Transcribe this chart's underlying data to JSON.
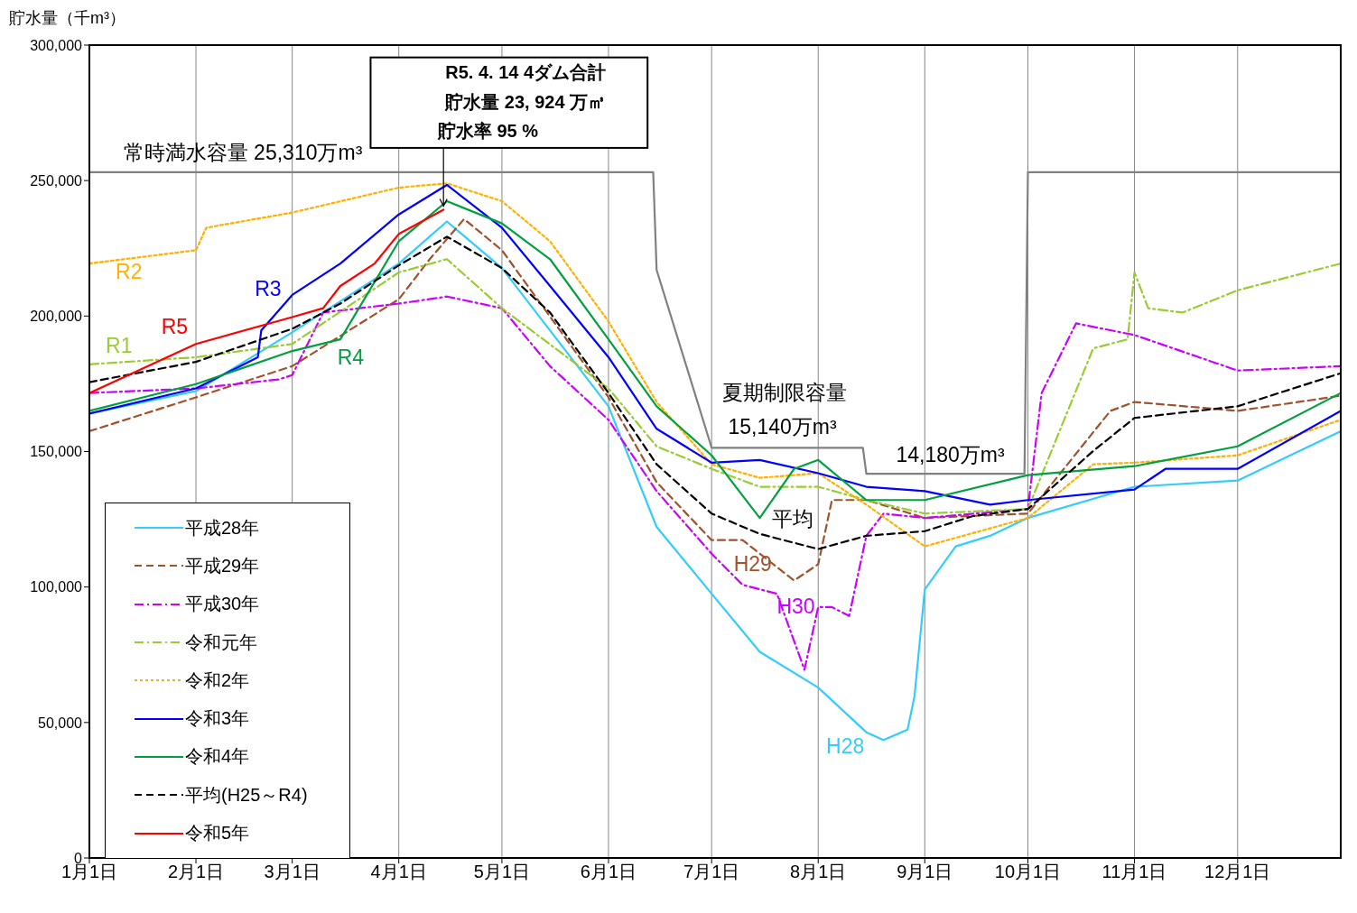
{
  "chart_data": {
    "type": "line",
    "ylabel": "貯水量（千m³）",
    "xlim": [
      "--01-01",
      "--12-31"
    ],
    "xticks": [
      {
        "value": "--01-01",
        "label": "1月1日"
      },
      {
        "value": "--02-01",
        "label": "2月1日"
      },
      {
        "value": "--03-01",
        "label": "3月1日"
      },
      {
        "value": "--04-01",
        "label": "4月1日"
      },
      {
        "value": "--05-01",
        "label": "5月1日"
      },
      {
        "value": "--06-01",
        "label": "6月1日"
      },
      {
        "value": "--07-01",
        "label": "7月1日"
      },
      {
        "value": "--08-01",
        "label": "8月1日"
      },
      {
        "value": "--09-01",
        "label": "9月1日"
      },
      {
        "value": "--10-01",
        "label": "10月1日"
      },
      {
        "value": "--11-01",
        "label": "11月1日"
      },
      {
        "value": "--12-01",
        "label": "12月1日"
      }
    ],
    "ylim": [
      0,
      300000
    ],
    "yticks": [
      {
        "value": 0,
        "label": "0"
      },
      {
        "value": 50000,
        "label": "50,000"
      },
      {
        "value": 100000,
        "label": "100,000"
      },
      {
        "value": 150000,
        "label": "150,000"
      },
      {
        "value": 200000,
        "label": "200,000"
      },
      {
        "value": 250000,
        "label": "250,000"
      },
      {
        "value": 300000,
        "label": "300,000"
      }
    ],
    "grid": true,
    "legend": "bottom left",
    "series": [
      {
        "color": "#808080",
        "line_style": "solid",
        "x": [
          "--01-01",
          "--06-14",
          "--06-15",
          "--07-01",
          "--08-14",
          "--08-15",
          "--09-30",
          "--10-01",
          "--12-31"
        ],
        "values": [
          253100,
          253100,
          217000,
          151400,
          151400,
          141800,
          141800,
          253100,
          253100
        ]
      },
      {
        "name": "平成28年",
        "color": "#33ccff",
        "line_style": "solid",
        "x": [
          "--01-01",
          "--02-01",
          "--03-01",
          "--04-01",
          "--04-15",
          "--05-01",
          "--06-01",
          "--06-15",
          "--07-01",
          "--07-15",
          "--08-01",
          "--08-15",
          "--08-20",
          "--08-27",
          "--08-29",
          "--09-01",
          "--09-10",
          "--09-20",
          "--10-01",
          "--11-01",
          "--12-01",
          "--12-31"
        ],
        "values": [
          164000,
          172300,
          194000,
          219400,
          234900,
          217700,
          166700,
          122200,
          97500,
          76100,
          62900,
          46400,
          43500,
          47400,
          59600,
          99100,
          115000,
          118900,
          125500,
          137000,
          139300,
          157500
        ]
      },
      {
        "name": "平成29年",
        "color": "#a0522d",
        "line_style": "dashed",
        "x": [
          "--01-01",
          "--02-01",
          "--03-01",
          "--04-01",
          "--04-10",
          "--04-20",
          "--05-01",
          "--06-01",
          "--06-15",
          "--07-01",
          "--07-10",
          "--07-25",
          "--08-01",
          "--08-05",
          "--08-15",
          "--09-01",
          "--10-01",
          "--10-25",
          "--11-01",
          "--12-01",
          "--12-31"
        ],
        "values": [
          157500,
          170000,
          181500,
          206200,
          221000,
          235800,
          224300,
          170000,
          138700,
          117300,
          117300,
          102400,
          108400,
          132100,
          132100,
          125500,
          127100,
          165000,
          168300,
          165000,
          170600
        ]
      },
      {
        "name": "平成30年",
        "color": "#cc00ff",
        "line_style": "dashdot",
        "x": [
          "--01-01",
          "--02-01",
          "--02-25",
          "--03-01",
          "--03-10",
          "--04-01",
          "--04-15",
          "--05-01",
          "--05-15",
          "--06-01",
          "--06-15",
          "--07-01",
          "--07-10",
          "--07-20",
          "--07-28",
          "--08-01",
          "--08-05",
          "--08-10",
          "--08-15",
          "--08-20",
          "--09-01",
          "--10-01",
          "--10-05",
          "--10-15",
          "--11-01",
          "--12-01",
          "--12-31"
        ],
        "values": [
          171600,
          173300,
          176600,
          178200,
          201300,
          204600,
          207200,
          202900,
          181500,
          161700,
          135400,
          112300,
          100800,
          97500,
          69500,
          92600,
          92600,
          89300,
          118900,
          127100,
          125500,
          128800,
          171600,
          197300,
          193000,
          179900,
          181500
        ]
      },
      {
        "name": "令和元年",
        "color": "#99cc33",
        "line_style": "dashdot",
        "x": [
          "--01-01",
          "--02-01",
          "--03-01",
          "--04-01",
          "--04-15",
          "--05-01",
          "--06-01",
          "--06-15",
          "--07-01",
          "--07-15",
          "--08-01",
          "--08-15",
          "--09-01",
          "--10-01",
          "--10-20",
          "--10-30",
          "--11-01",
          "--11-05",
          "--11-15",
          "--12-01",
          "--12-31"
        ],
        "values": [
          182200,
          184800,
          189700,
          216100,
          221000,
          202900,
          173300,
          151900,
          143600,
          137000,
          137000,
          132100,
          127100,
          128800,
          188100,
          191400,
          216100,
          202900,
          201300,
          209500,
          219400
        ]
      },
      {
        "name": "令和2年",
        "color": "#ffb000",
        "line_style": "dotted",
        "x": [
          "--01-01",
          "--02-01",
          "--02-04",
          "--03-01",
          "--04-01",
          "--04-15",
          "--05-01",
          "--05-15",
          "--06-01",
          "--06-15",
          "--07-01",
          "--07-15",
          "--08-01",
          "--08-15",
          "--09-01",
          "--10-01",
          "--10-20",
          "--11-01",
          "--12-01",
          "--12-31"
        ],
        "values": [
          219400,
          224300,
          232600,
          238200,
          247400,
          249000,
          242400,
          227600,
          198000,
          168300,
          145300,
          140300,
          142000,
          130400,
          115000,
          125500,
          145300,
          145900,
          148600,
          161700
        ]
      },
      {
        "name": "令和3年",
        "color": "#0000ff",
        "line_style": "solid",
        "x": [
          "--01-01",
          "--02-01",
          "--02-19",
          "--02-20",
          "--03-01",
          "--03-15",
          "--04-01",
          "--04-15",
          "--05-01",
          "--05-15",
          "--06-01",
          "--06-15",
          "--07-01",
          "--07-15",
          "--08-01",
          "--08-15",
          "--09-01",
          "--09-20",
          "--10-01",
          "--11-01",
          "--11-10",
          "--12-01",
          "--12-31"
        ],
        "values": [
          164000,
          173300,
          184800,
          194700,
          207800,
          219400,
          237500,
          248400,
          232600,
          211100,
          184800,
          158400,
          145900,
          146900,
          142000,
          137000,
          135400,
          130400,
          132100,
          136000,
          143600,
          143600,
          165000
        ]
      },
      {
        "name": "令和4年",
        "color": "#00a040",
        "line_style": "solid",
        "x": [
          "--01-01",
          "--02-01",
          "--03-01",
          "--03-15",
          "--04-01",
          "--04-15",
          "--05-01",
          "--05-15",
          "--06-01",
          "--06-15",
          "--07-01",
          "--07-15",
          "--07-25",
          "--08-01",
          "--08-15",
          "--09-01",
          "--10-01",
          "--11-01",
          "--12-01",
          "--12-31"
        ],
        "values": [
          165000,
          174900,
          187100,
          191400,
          227600,
          242400,
          234200,
          221000,
          191400,
          166700,
          148600,
          125500,
          143600,
          146900,
          132100,
          132100,
          141300,
          144600,
          151900,
          171600
        ]
      },
      {
        "name": "平均(H25～R4)",
        "color": "#000000",
        "line_style": "dashed",
        "x": [
          "--01-01",
          "--02-01",
          "--03-01",
          "--03-15",
          "--04-01",
          "--04-15",
          "--05-01",
          "--05-15",
          "--06-01",
          "--06-15",
          "--07-01",
          "--07-15",
          "--08-01",
          "--08-15",
          "--09-01",
          "--09-15",
          "--10-01",
          "--10-20",
          "--11-01",
          "--12-01",
          "--12-31"
        ],
        "values": [
          175600,
          183100,
          195300,
          204600,
          218700,
          229300,
          217700,
          201300,
          171600,
          145300,
          127100,
          119600,
          114000,
          118900,
          120600,
          126200,
          128800,
          150200,
          162400,
          166700,
          178900
        ]
      },
      {
        "name": "令和5年",
        "color": "#ff0000",
        "line_style": "solid",
        "x": [
          "--01-01",
          "--02-01",
          "--03-01",
          "--03-10",
          "--03-15",
          "--03-25",
          "--04-01",
          "--04-14"
        ],
        "values": [
          171600,
          189700,
          199600,
          202900,
          211100,
          219400,
          230300,
          239240
        ]
      }
    ],
    "annotations": [
      "R5. 4. 14 4ダム合計",
      "貯水量 23, 924 万㎥",
      {
        "text": "貯水率 95 %",
        "x": "--04-14",
        "y": 239240
      },
      "常時満水容量 25,310万m³",
      "夏期制限容量",
      "15,140万m³",
      "14,180万m³",
      "R2",
      "R3",
      "R5",
      "R1",
      "R4",
      "平均",
      "H29",
      "H30",
      "H28"
    ]
  }
}
